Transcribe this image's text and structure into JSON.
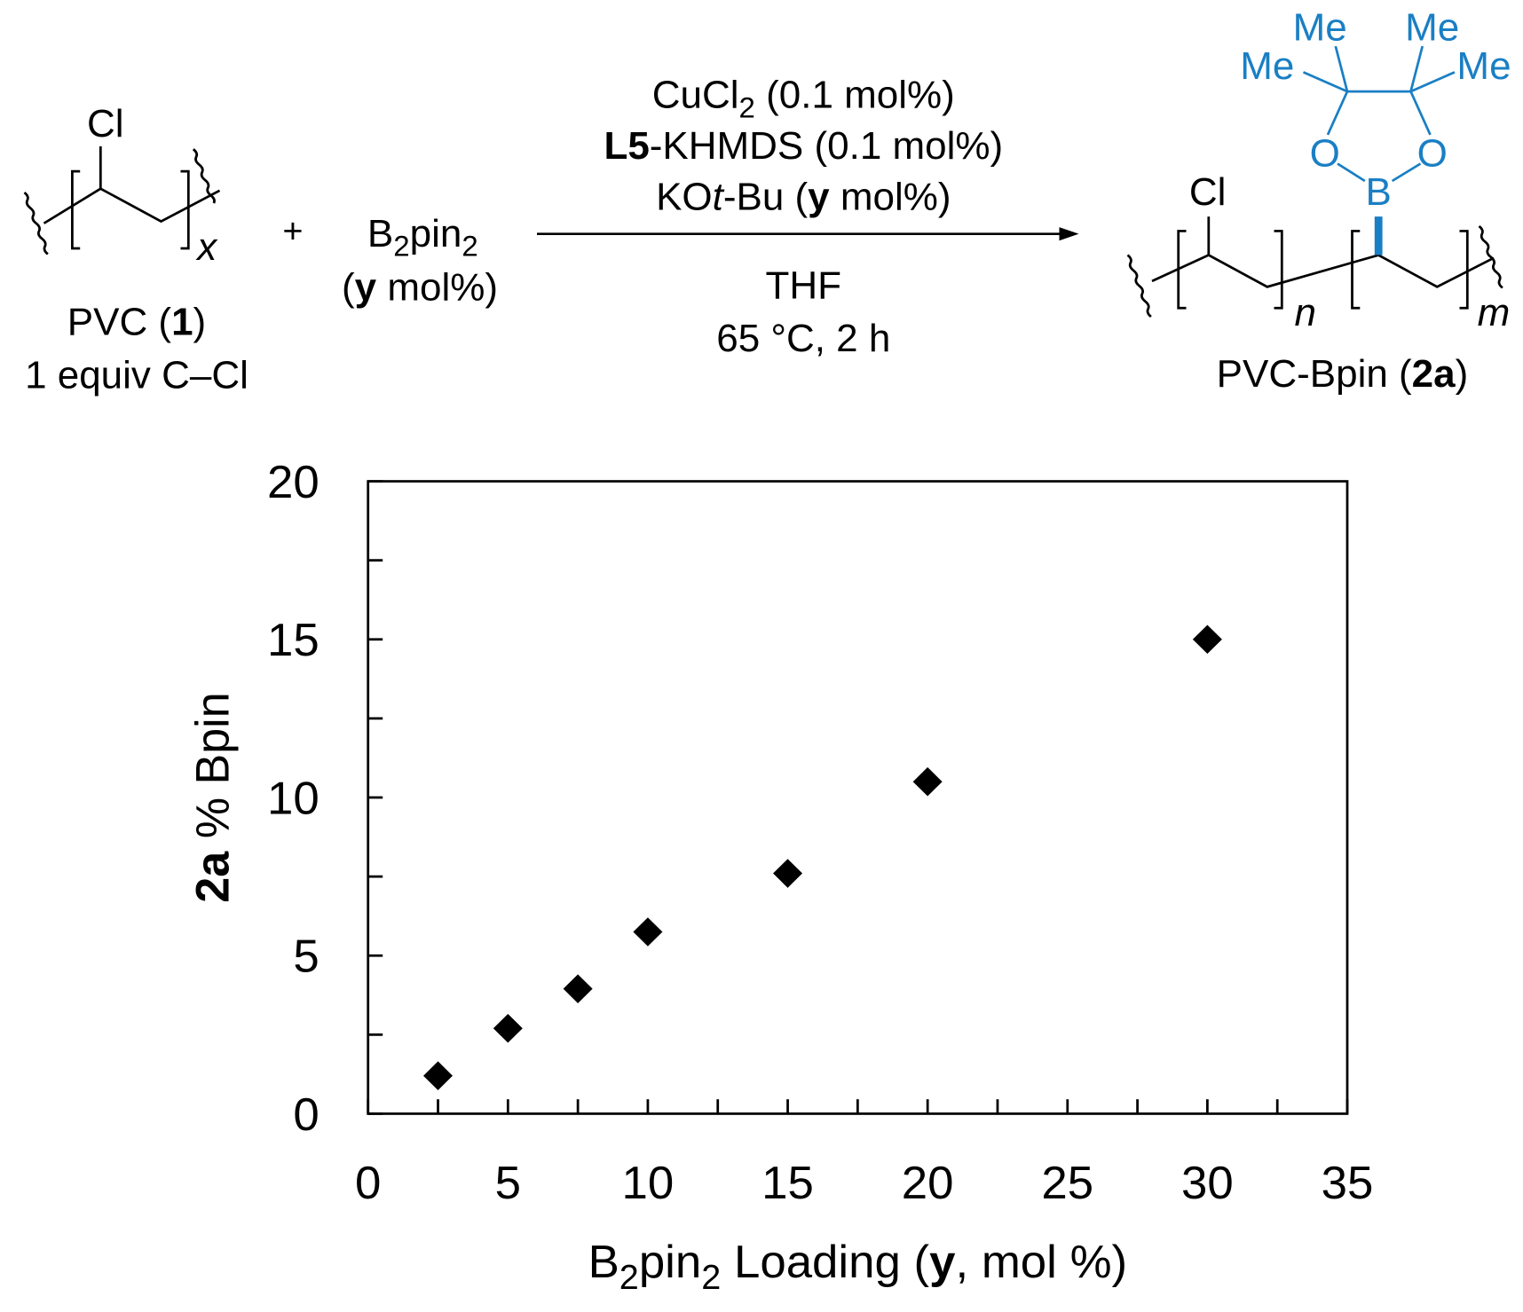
{
  "scheme": {
    "left_cl": [
      {
        "t": "Cl"
      }
    ],
    "left_x": [
      {
        "t": "x",
        "i": true
      }
    ],
    "pvc": [
      {
        "t": "PVC ("
      },
      {
        "t": "1",
        "b": true
      },
      {
        "t": ")"
      }
    ],
    "pvc_equiv": [
      {
        "t": "1 equiv C–Cl"
      }
    ],
    "plus": [
      {
        "t": "+"
      }
    ],
    "b2pin2": [
      {
        "t": "B"
      },
      {
        "t": "2",
        "sub": true
      },
      {
        "t": "pin"
      },
      {
        "t": "2",
        "sub": true
      }
    ],
    "b2pin2_amount": [
      {
        "t": "("
      },
      {
        "t": "y",
        "b": true
      },
      {
        "t": " mol%)"
      }
    ],
    "cond1": [
      {
        "t": "CuCl"
      },
      {
        "t": "2",
        "sub": true
      },
      {
        "t": " (0.1 mol%)"
      }
    ],
    "cond2": [
      {
        "t": "L5",
        "b": true
      },
      {
        "t": "-KHMDS (0.1 mol%)"
      }
    ],
    "cond3": [
      {
        "t": "KO"
      },
      {
        "t": "t",
        "i": true
      },
      {
        "t": "-Bu ("
      },
      {
        "t": "y",
        "b": true
      },
      {
        "t": " mol%)"
      }
    ],
    "cond4": [
      {
        "t": "THF"
      }
    ],
    "cond5": [
      {
        "t": "65 °C, 2 h"
      }
    ],
    "me1": [
      {
        "t": "Me"
      }
    ],
    "me2": [
      {
        "t": "Me"
      }
    ],
    "me3": [
      {
        "t": "Me"
      }
    ],
    "me4": [
      {
        "t": "Me"
      }
    ],
    "o1": [
      {
        "t": "O"
      }
    ],
    "o2": [
      {
        "t": "O"
      }
    ],
    "b": [
      {
        "t": "B"
      }
    ],
    "right_cl": [
      {
        "t": "Cl"
      }
    ],
    "n": [
      {
        "t": "n",
        "i": true
      }
    ],
    "m": [
      {
        "t": "m",
        "i": true
      }
    ],
    "product": [
      {
        "t": "PVC-Bpin ("
      },
      {
        "t": "2a",
        "b": true
      },
      {
        "t": ")"
      }
    ]
  },
  "chart_data": {
    "type": "scatter",
    "xlabel": [
      {
        "t": "B"
      },
      {
        "t": "2",
        "sub": true
      },
      {
        "t": "pin"
      },
      {
        "t": "2",
        "sub": true
      },
      {
        "t": " Loading ("
      },
      {
        "t": "y",
        "b": true
      },
      {
        "t": ", mol %)"
      }
    ],
    "ylabel": [
      {
        "t": "2a",
        "b": true
      },
      {
        "t": " % Bpin"
      }
    ],
    "x": [
      2.5,
      5,
      7.5,
      10,
      15,
      20,
      30
    ],
    "values": [
      1.2,
      2.7,
      3.95,
      5.75,
      7.6,
      10.5,
      15.0
    ],
    "color": "#000000",
    "marker": "diamond",
    "xlim": [
      0,
      35
    ],
    "ylim": [
      0,
      20
    ],
    "xticks": [
      0,
      5,
      10,
      15,
      20,
      25,
      30,
      35
    ],
    "yticks": [
      0,
      5,
      10,
      15,
      20
    ],
    "xminorticks": [
      2.5,
      7.5,
      12.5,
      17.5,
      22.5,
      27.5,
      32.5
    ],
    "yminorticks": [
      2.5,
      7.5,
      12.5,
      17.5
    ]
  }
}
